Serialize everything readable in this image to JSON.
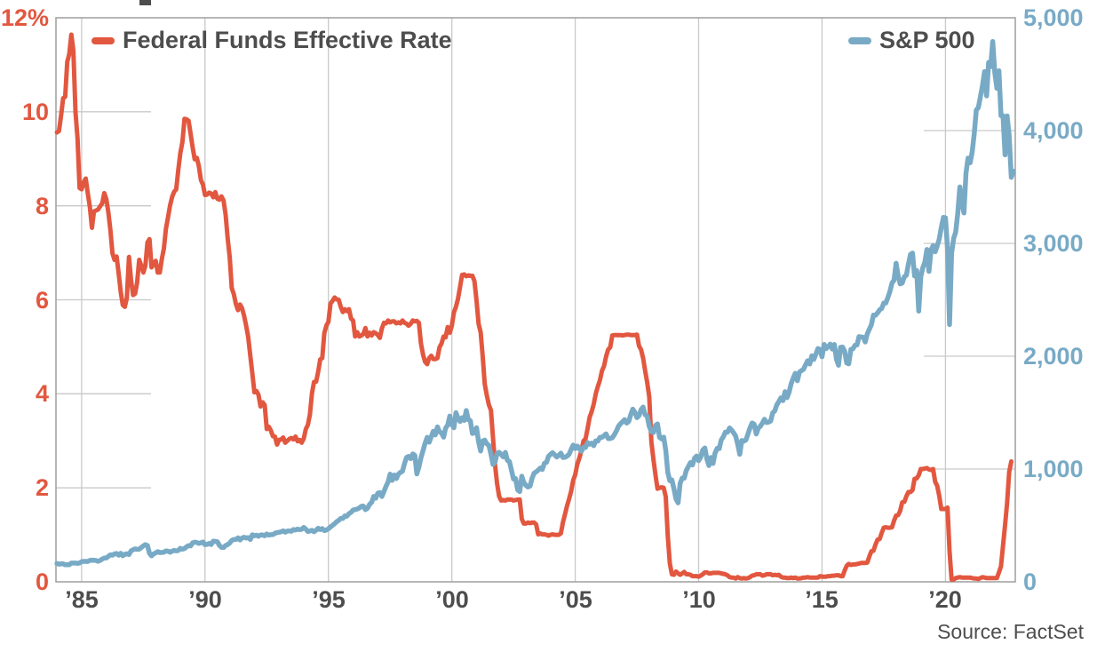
{
  "source_note": "Source: FactSet",
  "chart_data": {
    "type": "line",
    "legend_position": "top-inside",
    "grid": {
      "vertical": "full",
      "horizontal": "short-stubs-at-both-axes"
    },
    "colors": {
      "red_series": "#e2573f",
      "blue_series": "#78aac6",
      "gridline": "#c9c9c9",
      "border": "#9e9e9e",
      "text": "#4d4d4d"
    },
    "legend": [
      {
        "label": "Federal Funds Effective Rate",
        "color": "#e2573f"
      },
      {
        "label": "S&P 500",
        "color": "#78aac6"
      }
    ],
    "x_axis": {
      "range_years": [
        1983.96,
        2022.83
      ],
      "ticks": [
        {
          "year": 1985,
          "label": "’85"
        },
        {
          "year": 1990,
          "label": "’90"
        },
        {
          "year": 1995,
          "label": "’95"
        },
        {
          "year": 2000,
          "label": "’00"
        },
        {
          "year": 2005,
          "label": "’05"
        },
        {
          "year": 2010,
          "label": "’10"
        },
        {
          "year": 2015,
          "label": "’15"
        },
        {
          "year": 2020,
          "label": "’20"
        }
      ]
    },
    "y_left": {
      "min": 0,
      "max": 12,
      "color": "#e2573f",
      "ticks": [
        {
          "value": 12,
          "label": "12%"
        },
        {
          "value": 10,
          "label": "10"
        },
        {
          "value": 8,
          "label": "8"
        },
        {
          "value": 6,
          "label": "6"
        },
        {
          "value": 4,
          "label": "4"
        },
        {
          "value": 2,
          "label": "2"
        },
        {
          "value": 0,
          "label": "0"
        }
      ],
      "stub_values": [
        10,
        8,
        6,
        4,
        2
      ]
    },
    "y_right": {
      "min": 0,
      "max": 5000,
      "color": "#78aac6",
      "ticks": [
        {
          "value": 5000,
          "label": "5,000"
        },
        {
          "value": 4000,
          "label": "4,000"
        },
        {
          "value": 3000,
          "label": "3,000"
        },
        {
          "value": 2000,
          "label": "2,000"
        },
        {
          "value": 1000,
          "label": "1,000"
        },
        {
          "value": 0,
          "label": "0"
        }
      ],
      "stub_values": [
        4000,
        3000,
        2000,
        1000
      ]
    },
    "series": [
      {
        "name": "Federal Funds Effective Rate",
        "axis": "left",
        "color": "#e2573f",
        "stroke_width": 5,
        "start_year": 1984.0,
        "step_months": 1,
        "values": [
          9.56,
          9.59,
          9.91,
          10.29,
          10.32,
          11.06,
          11.23,
          11.64,
          11.3,
          9.99,
          9.43,
          8.38,
          8.35,
          8.5,
          8.58,
          8.27,
          7.97,
          7.53,
          7.88,
          7.9,
          7.92,
          7.99,
          8.05,
          8.27,
          8.14,
          7.86,
          7.48,
          6.99,
          6.85,
          6.92,
          6.56,
          6.17,
          5.89,
          5.85,
          6.04,
          6.91,
          6.43,
          6.1,
          6.13,
          6.37,
          6.85,
          6.73,
          6.58,
          6.73,
          7.22,
          7.29,
          6.69,
          6.77,
          6.83,
          6.58,
          6.58,
          6.87,
          7.09,
          7.51,
          7.75,
          8.01,
          8.19,
          8.3,
          8.35,
          8.76,
          9.12,
          9.36,
          9.85,
          9.84,
          9.81,
          9.53,
          9.24,
          8.99,
          9.02,
          8.84,
          8.55,
          8.45,
          8.23,
          8.24,
          8.28,
          8.26,
          8.18,
          8.29,
          8.15,
          8.13,
          8.2,
          8.11,
          7.81,
          7.31,
          6.91,
          6.25,
          6.12,
          5.91,
          5.78,
          5.9,
          5.82,
          5.66,
          5.45,
          5.21,
          4.81,
          4.43,
          4.03,
          4.06,
          3.98,
          3.73,
          3.82,
          3.76,
          3.25,
          3.3,
          3.22,
          3.1,
          3.09,
          2.92,
          3.02,
          3.03,
          3.07,
          2.96,
          3.0,
          3.04,
          3.06,
          3.03,
          3.09,
          2.99,
          3.02,
          2.96,
          3.05,
          3.25,
          3.34,
          3.56,
          4.01,
          4.25,
          4.26,
          4.47,
          4.73,
          4.76,
          5.29,
          5.45,
          5.53,
          5.92,
          5.98,
          6.05,
          6.01,
          6.0,
          5.85,
          5.74,
          5.8,
          5.76,
          5.8,
          5.6,
          5.56,
          5.22,
          5.31,
          5.22,
          5.24,
          5.27,
          5.4,
          5.22,
          5.3,
          5.24,
          5.31,
          5.29,
          5.25,
          5.19,
          5.39,
          5.51,
          5.5,
          5.56,
          5.52,
          5.54,
          5.54,
          5.5,
          5.52,
          5.5,
          5.56,
          5.51,
          5.49,
          5.45,
          5.49,
          5.56,
          5.54,
          5.55,
          5.51,
          5.07,
          4.83,
          4.68,
          4.63,
          4.76,
          4.81,
          4.74,
          4.74,
          4.76,
          4.99,
          5.07,
          5.22,
          5.2,
          5.42,
          5.3,
          5.45,
          5.73,
          5.85,
          6.02,
          6.27,
          6.53,
          6.54,
          6.5,
          6.52,
          6.51,
          6.51,
          6.4,
          5.98,
          5.49,
          5.31,
          4.8,
          4.21,
          3.97,
          3.77,
          3.65,
          3.07,
          2.49,
          2.09,
          1.82,
          1.73,
          1.74,
          1.73,
          1.75,
          1.75,
          1.75,
          1.73,
          1.74,
          1.75,
          1.75,
          1.34,
          1.24,
          1.24,
          1.26,
          1.25,
          1.26,
          1.26,
          1.22,
          1.01,
          1.03,
          1.01,
          1.01,
          1.0,
          0.98,
          1.0,
          1.01,
          1.0,
          1.0,
          1.0,
          1.03,
          1.26,
          1.43,
          1.61,
          1.76,
          1.93,
          2.16,
          2.28,
          2.5,
          2.63,
          2.79,
          3.0,
          3.04,
          3.26,
          3.5,
          3.62,
          3.78,
          4.0,
          4.16,
          4.29,
          4.49,
          4.59,
          4.79,
          4.94,
          4.99,
          5.24,
          5.25,
          5.25,
          5.25,
          5.25,
          5.24,
          5.25,
          5.26,
          5.26,
          5.25,
          5.25,
          5.25,
          5.26,
          5.02,
          4.94,
          4.76,
          4.49,
          4.24,
          3.94,
          2.98,
          2.61,
          2.28,
          1.98,
          2.0,
          2.01,
          2.0,
          1.81,
          0.97,
          0.39,
          0.16,
          0.15,
          0.22,
          0.18,
          0.15,
          0.18,
          0.21,
          0.16,
          0.16,
          0.15,
          0.12,
          0.12,
          0.12,
          0.11,
          0.13,
          0.16,
          0.2,
          0.2,
          0.18,
          0.18,
          0.19,
          0.19,
          0.19,
          0.19,
          0.18,
          0.17,
          0.16,
          0.14,
          0.1,
          0.09,
          0.09,
          0.07,
          0.1,
          0.08,
          0.07,
          0.08,
          0.07,
          0.08,
          0.1,
          0.13,
          0.14,
          0.16,
          0.16,
          0.16,
          0.13,
          0.14,
          0.16,
          0.16,
          0.16,
          0.14,
          0.15,
          0.14,
          0.15,
          0.11,
          0.09,
          0.09,
          0.08,
          0.08,
          0.09,
          0.08,
          0.09,
          0.07,
          0.07,
          0.08,
          0.09,
          0.09,
          0.1,
          0.09,
          0.09,
          0.09,
          0.09,
          0.09,
          0.12,
          0.11,
          0.11,
          0.11,
          0.12,
          0.12,
          0.13,
          0.13,
          0.14,
          0.14,
          0.12,
          0.12,
          0.24,
          0.34,
          0.38,
          0.36,
          0.37,
          0.37,
          0.38,
          0.39,
          0.4,
          0.4,
          0.4,
          0.41,
          0.54,
          0.65,
          0.66,
          0.79,
          0.9,
          0.91,
          1.04,
          1.15,
          1.16,
          1.15,
          1.15,
          1.16,
          1.3,
          1.41,
          1.42,
          1.51,
          1.69,
          1.7,
          1.82,
          1.91,
          1.91,
          1.95,
          2.19,
          2.2,
          2.27,
          2.4,
          2.4,
          2.41,
          2.42,
          2.39,
          2.38,
          2.4,
          2.13,
          2.04,
          1.83,
          1.55,
          1.55,
          1.55,
          1.58,
          0.65,
          0.05,
          0.05,
          0.08,
          0.09,
          0.1,
          0.09,
          0.09,
          0.09,
          0.09,
          0.09,
          0.08,
          0.07,
          0.07,
          0.06,
          0.08,
          0.1,
          0.09,
          0.08,
          0.08,
          0.08,
          0.08,
          0.08,
          0.08,
          0.2,
          0.33,
          0.77,
          1.21,
          1.68,
          2.33,
          2.56
        ]
      },
      {
        "name": "S&P 500",
        "axis": "right",
        "color": "#78aac6",
        "stroke_width": 5.5,
        "start_year": 1984.0,
        "step_months": 1,
        "values": [
          163,
          157,
          159,
          160,
          151,
          153,
          151,
          166,
          166,
          166,
          164,
          167,
          179,
          181,
          181,
          180,
          190,
          192,
          191,
          189,
          182,
          190,
          202,
          211,
          212,
          227,
          239,
          236,
          247,
          251,
          236,
          253,
          231,
          244,
          249,
          242,
          274,
          284,
          292,
          288,
          290,
          304,
          319,
          330,
          322,
          252,
          230,
          247,
          257,
          268,
          259,
          261,
          262,
          274,
          272,
          262,
          272,
          279,
          274,
          278,
          297,
          289,
          295,
          310,
          321,
          318,
          346,
          351,
          349,
          340,
          346,
          353,
          329,
          332,
          340,
          331,
          361,
          358,
          356,
          323,
          306,
          304,
          322,
          330,
          344,
          367,
          375,
          375,
          390,
          371,
          388,
          395,
          388,
          392,
          375,
          417,
          409,
          413,
          404,
          415,
          415,
          408,
          424,
          414,
          418,
          419,
          431,
          436,
          439,
          444,
          452,
          440,
          450,
          451,
          448,
          464,
          459,
          468,
          462,
          466,
          482,
          467,
          446,
          451,
          457,
          444,
          458,
          475,
          463,
          472,
          454,
          459,
          470,
          487,
          501,
          515,
          533,
          545,
          562,
          562,
          584,
          582,
          605,
          616,
          636,
          640,
          646,
          654,
          669,
          671,
          640,
          652,
          687,
          705,
          757,
          741,
          786,
          791,
          757,
          801,
          848,
          885,
          954,
          899,
          947,
          915,
          955,
          970,
          980,
          1049,
          1102,
          1112,
          1091,
          1134,
          1121,
          957,
          1017,
          1099,
          1164,
          1229,
          1280,
          1238,
          1286,
          1335,
          1302,
          1373,
          1329,
          1320,
          1283,
          1363,
          1389,
          1469,
          1394,
          1366,
          1499,
          1452,
          1421,
          1455,
          1431,
          1518,
          1437,
          1429,
          1315,
          1320,
          1366,
          1240,
          1160,
          1249,
          1256,
          1224,
          1211,
          1134,
          1041,
          1060,
          1139,
          1148,
          1130,
          1107,
          1147,
          1077,
          1067,
          990,
          912,
          916,
          815,
          800,
          936,
          880,
          856,
          841,
          848,
          917,
          964,
          975,
          990,
          1008,
          996,
          1051,
          1058,
          1112,
          1131,
          1145,
          1126,
          1107,
          1121,
          1141,
          1102,
          1104,
          1114,
          1130,
          1174,
          1212,
          1181,
          1204,
          1181,
          1157,
          1192,
          1191,
          1234,
          1220,
          1229,
          1207,
          1249,
          1248,
          1280,
          1281,
          1295,
          1311,
          1270,
          1270,
          1277,
          1304,
          1336,
          1378,
          1401,
          1418,
          1438,
          1407,
          1421,
          1482,
          1531,
          1503,
          1455,
          1474,
          1527,
          1549,
          1481,
          1468,
          1379,
          1331,
          1323,
          1386,
          1400,
          1280,
          1267,
          1283,
          1166,
          969,
          896,
          903,
          826,
          735,
          700,
          873,
          919,
          919,
          987,
          1021,
          1057,
          1036,
          1096,
          1115,
          1074,
          1104,
          1169,
          1187,
          1089,
          1031,
          1102,
          1049,
          1141,
          1183,
          1181,
          1258,
          1286,
          1327,
          1326,
          1364,
          1345,
          1321,
          1292,
          1219,
          1131,
          1253,
          1247,
          1258,
          1312,
          1366,
          1408,
          1398,
          1310,
          1362,
          1379,
          1407,
          1441,
          1412,
          1416,
          1426,
          1498,
          1515,
          1569,
          1598,
          1631,
          1606,
          1686,
          1633,
          1682,
          1757,
          1806,
          1848,
          1783,
          1859,
          1872,
          1884,
          1924,
          1960,
          1931,
          2003,
          1972,
          2018,
          2068,
          2059,
          1995,
          2105,
          2068,
          2086,
          2107,
          2063,
          2104,
          1972,
          1920,
          2079,
          2080,
          2044,
          1940,
          1932,
          2060,
          2065,
          2097,
          2099,
          2174,
          2171,
          2168,
          2126,
          2199,
          2239,
          2279,
          2364,
          2363,
          2384,
          2412,
          2423,
          2470,
          2472,
          2519,
          2575,
          2648,
          2674,
          2824,
          2714,
          2641,
          2648,
          2705,
          2718,
          2816,
          2902,
          2914,
          2712,
          2760,
          2400,
          2704,
          2784,
          2834,
          2946,
          2752,
          2942,
          2980,
          2926,
          2977,
          3038,
          3141,
          3231,
          3226,
          2954,
          2280,
          2912,
          3044,
          3100,
          3271,
          3500,
          3363,
          3270,
          3622,
          3756,
          3714,
          3811,
          3973,
          4181,
          4204,
          4298,
          4395,
          4523,
          4308,
          4605,
          4567,
          4790,
          4516,
          4374,
          4530,
          4132,
          4132,
          3785,
          4130,
          3955,
          3586,
          3640
        ]
      }
    ]
  }
}
